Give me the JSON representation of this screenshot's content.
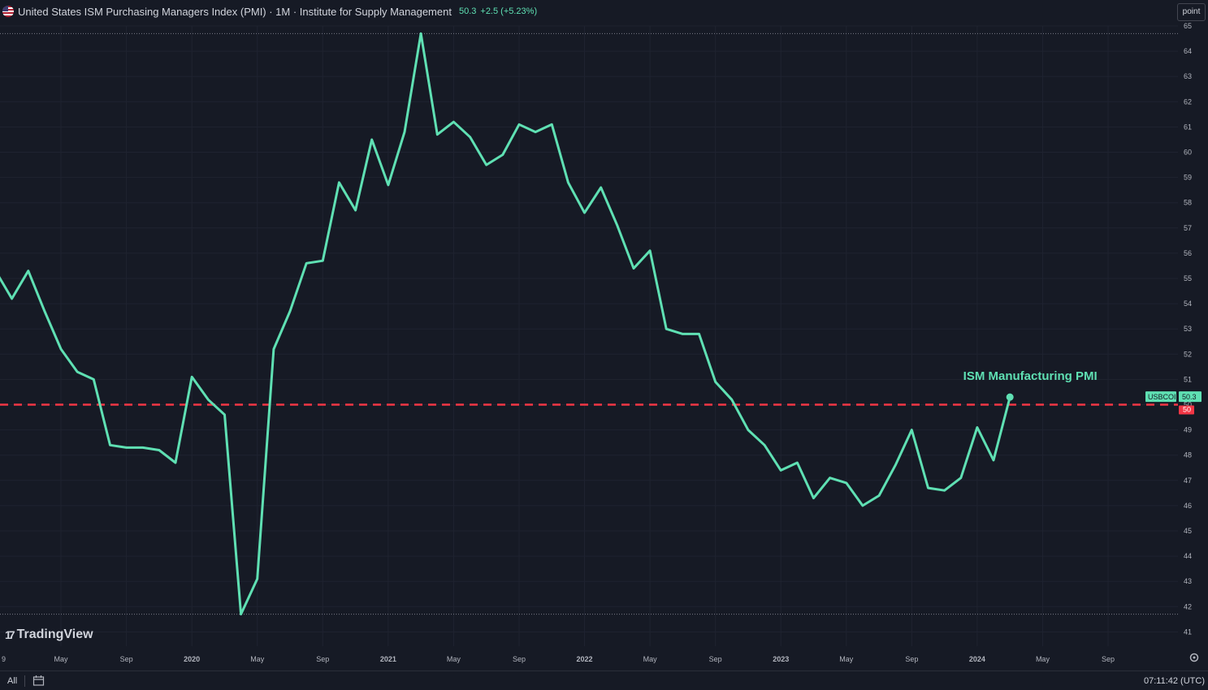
{
  "header": {
    "title": "United States ISM Purchasing Managers Index (PMI) · 1M · Institute for Supply Management",
    "last_value": "50.3",
    "change": "+2.5 (+5.23%)"
  },
  "toolbar": {
    "point_label": "point"
  },
  "logo": {
    "text": "TradingView"
  },
  "bottom_bar": {
    "all_label": "All",
    "time": "07:11:42 (UTC)"
  },
  "price_labels": {
    "symbol": "USBCOI",
    "last": "50.3",
    "ref": "50"
  },
  "colors": {
    "line": "#5fe0b3",
    "ref_line": "#f23645",
    "background": "#161a25",
    "grid": "#1f2330"
  },
  "chart_data": {
    "type": "line",
    "x_tick_labels": [
      "9",
      "May",
      "Sep",
      "2020",
      "May",
      "Sep",
      "2021",
      "May",
      "Sep",
      "2022",
      "May",
      "Sep",
      "2023",
      "May",
      "Sep",
      "2024",
      "May",
      "Sep"
    ],
    "y_ticks": [
      41,
      42,
      43,
      44,
      45,
      46,
      47,
      48,
      49,
      50,
      51,
      52,
      53,
      54,
      55,
      56,
      57,
      58,
      59,
      60,
      61,
      62,
      63,
      64,
      65
    ],
    "ylim": [
      40.55,
      65.25
    ],
    "annotation": "ISM Manufacturing PMI",
    "reference_line": 50,
    "series": [
      {
        "name": "USBCOI",
        "x": [
          "2019-01",
          "2019-02",
          "2019-03",
          "2019-04",
          "2019-05",
          "2019-06",
          "2019-07",
          "2019-08",
          "2019-09",
          "2019-10",
          "2019-11",
          "2019-12",
          "2020-01",
          "2020-02",
          "2020-03",
          "2020-04",
          "2020-05",
          "2020-06",
          "2020-07",
          "2020-08",
          "2020-09",
          "2020-10",
          "2020-11",
          "2020-12",
          "2021-01",
          "2021-02",
          "2021-03",
          "2021-04",
          "2021-05",
          "2021-06",
          "2021-07",
          "2021-08",
          "2021-09",
          "2021-10",
          "2021-11",
          "2021-12",
          "2022-01",
          "2022-02",
          "2022-03",
          "2022-04",
          "2022-05",
          "2022-06",
          "2022-07",
          "2022-08",
          "2022-09",
          "2022-10",
          "2022-11",
          "2022-12",
          "2023-01",
          "2023-02",
          "2023-03",
          "2023-04",
          "2023-05",
          "2023-06",
          "2023-07",
          "2023-08",
          "2023-09",
          "2023-10",
          "2023-11",
          "2023-12",
          "2024-01",
          "2024-02",
          "2024-03"
        ],
        "values": [
          55.3,
          54.2,
          55.3,
          53.7,
          52.2,
          51.3,
          51.0,
          48.4,
          48.3,
          48.3,
          48.2,
          47.7,
          51.1,
          50.2,
          49.6,
          41.7,
          43.1,
          52.2,
          53.7,
          55.6,
          55.7,
          58.8,
          57.7,
          60.5,
          58.7,
          60.8,
          64.7,
          60.7,
          61.2,
          60.6,
          59.5,
          59.9,
          61.1,
          60.8,
          61.1,
          58.8,
          57.6,
          58.6,
          57.1,
          55.4,
          56.1,
          53.0,
          52.8,
          52.8,
          50.9,
          50.2,
          49.0,
          48.4,
          47.4,
          47.7,
          46.3,
          47.1,
          46.9,
          46.0,
          46.4,
          47.6,
          49.0,
          46.7,
          46.6,
          47.1,
          49.1,
          47.8,
          50.3
        ]
      }
    ]
  }
}
